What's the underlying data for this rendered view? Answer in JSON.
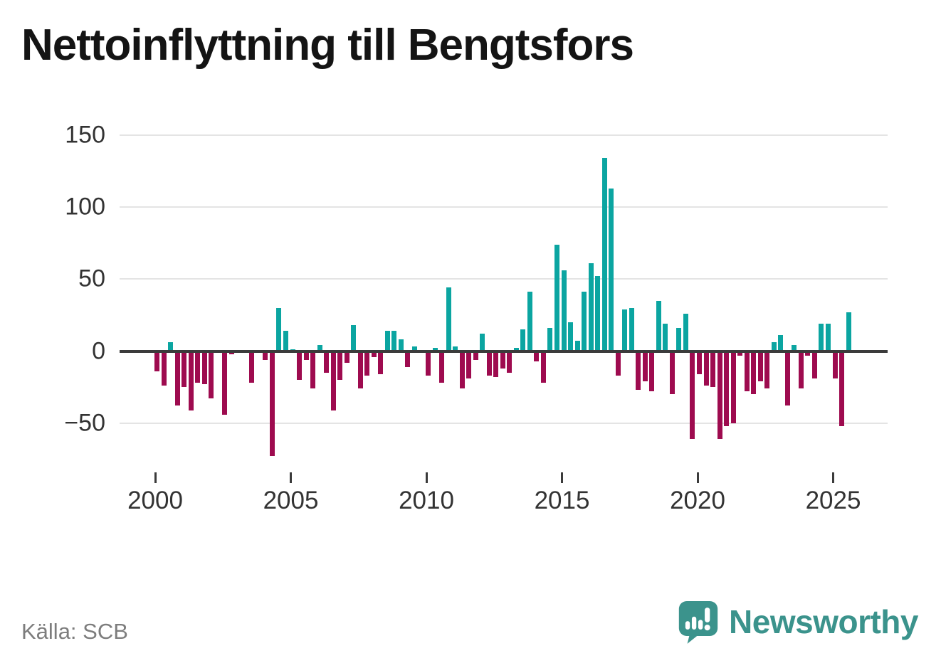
{
  "header": {
    "title": "Nettoinflyttning till Bengtsfors"
  },
  "footer": {
    "source": "Källa: SCB",
    "brand": "Newsworthy"
  },
  "chart_data": {
    "type": "bar",
    "title": "Nettoinflyttning till Bengtsfors",
    "xlabel": "",
    "ylabel": "",
    "ylim": [
      -80,
      155
    ],
    "grid": true,
    "legend": "none",
    "y_ticks": [
      150,
      100,
      50,
      0,
      -50
    ],
    "y_tick_labels": [
      "150",
      "100",
      "50",
      "0",
      "−50"
    ],
    "x_tick_years": [
      2000,
      2005,
      2010,
      2015,
      2020,
      2025
    ],
    "x_tick_labels": [
      "2000",
      "2005",
      "2010",
      "2015",
      "2020",
      "2025"
    ],
    "quarters": [
      "2000Q1",
      "2000Q2",
      "2000Q3",
      "2000Q4",
      "2001Q1",
      "2001Q2",
      "2001Q3",
      "2001Q4",
      "2002Q1",
      "2002Q2",
      "2002Q3",
      "2002Q4",
      "2003Q1",
      "2003Q2",
      "2003Q3",
      "2003Q4",
      "2004Q1",
      "2004Q2",
      "2004Q3",
      "2004Q4",
      "2005Q1",
      "2005Q2",
      "2005Q3",
      "2005Q4",
      "2006Q1",
      "2006Q2",
      "2006Q3",
      "2006Q4",
      "2007Q1",
      "2007Q2",
      "2007Q3",
      "2007Q4",
      "2008Q1",
      "2008Q2",
      "2008Q3",
      "2008Q4",
      "2009Q1",
      "2009Q2",
      "2009Q3",
      "2009Q4",
      "2010Q1",
      "2010Q2",
      "2010Q3",
      "2010Q4",
      "2011Q1",
      "2011Q2",
      "2011Q3",
      "2011Q4",
      "2012Q1",
      "2012Q2",
      "2012Q3",
      "2012Q4",
      "2013Q1",
      "2013Q2",
      "2013Q3",
      "2013Q4",
      "2014Q1",
      "2014Q2",
      "2014Q3",
      "2014Q4",
      "2015Q1",
      "2015Q2",
      "2015Q3",
      "2015Q4",
      "2016Q1",
      "2016Q2",
      "2016Q3",
      "2016Q4",
      "2017Q1",
      "2017Q2",
      "2017Q3",
      "2017Q4",
      "2018Q1",
      "2018Q2",
      "2018Q3",
      "2018Q4",
      "2019Q1",
      "2019Q2",
      "2019Q3",
      "2019Q4",
      "2020Q1",
      "2020Q2",
      "2020Q3",
      "2020Q4",
      "2021Q1",
      "2021Q2",
      "2021Q3",
      "2021Q4",
      "2022Q1",
      "2022Q2",
      "2022Q3",
      "2022Q4",
      "2023Q1",
      "2023Q2",
      "2023Q3",
      "2023Q4",
      "2024Q1",
      "2024Q2",
      "2024Q3",
      "2024Q4",
      "2025Q1",
      "2025Q2",
      "2025Q3"
    ],
    "values": [
      -14,
      -24,
      6,
      -38,
      -25,
      -41,
      -22,
      -23,
      -33,
      0,
      -44,
      -2,
      0,
      0,
      -22,
      0,
      -6,
      -73,
      30,
      14,
      1,
      -20,
      -6,
      -26,
      4,
      -15,
      -41,
      -20,
      -8,
      18,
      -26,
      -17,
      -4,
      -16,
      14,
      14,
      8,
      -11,
      3,
      0,
      -17,
      2,
      -22,
      44,
      3,
      -26,
      -19,
      -6,
      12,
      -17,
      -18,
      -12,
      -15,
      2,
      15,
      41,
      -7,
      -22,
      16,
      74,
      56,
      20,
      7,
      41,
      61,
      52,
      134,
      113,
      -17,
      29,
      30,
      -27,
      -21,
      -28,
      35,
      19,
      -30,
      16,
      26,
      -61,
      -16,
      -24,
      -25,
      -61,
      -52,
      -50,
      -3,
      -28,
      -30,
      -21,
      -26,
      6,
      11,
      -38,
      4,
      -26,
      -3,
      -19,
      19,
      19,
      -19,
      -52,
      27
    ],
    "colors": {
      "positive": "#0ba5a1",
      "negative": "#9e0b4f",
      "axis": "#3b3b3b",
      "grid": "#e4e4e4",
      "tick_text": "#333333",
      "muted_text": "#7d7d7d",
      "brand": "#3b938c",
      "title_text": "#141414"
    }
  }
}
